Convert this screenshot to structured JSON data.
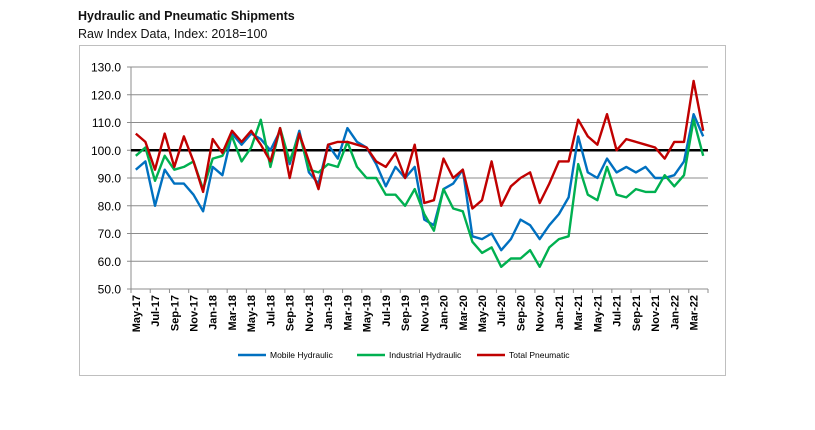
{
  "chart_data": {
    "type": "line",
    "title": "Hydraulic and Pneumatic Shipments",
    "subtitle": "Raw Index Data, Index: 2018=100",
    "xlabel": "",
    "ylabel": "",
    "ylim": [
      50,
      130
    ],
    "yticks": [
      "50.0",
      "60.0",
      "70.0",
      "80.0",
      "90.0",
      "100.0",
      "110.0",
      "120.0",
      "130.0"
    ],
    "reference_line": 100,
    "grid": true,
    "legend_placement": "bottom",
    "x": [
      "May-17",
      "Jun-17",
      "Jul-17",
      "Aug-17",
      "Sep-17",
      "Oct-17",
      "Nov-17",
      "Dec-17",
      "Jan-18",
      "Feb-18",
      "Mar-18",
      "Apr-18",
      "May-18",
      "Jun-18",
      "Jul-18",
      "Aug-18",
      "Sep-18",
      "Oct-18",
      "Nov-18",
      "Dec-18",
      "Jan-19",
      "Feb-19",
      "Mar-19",
      "Apr-19",
      "May-19",
      "Jun-19",
      "Jul-19",
      "Aug-19",
      "Sep-19",
      "Oct-19",
      "Nov-19",
      "Dec-19",
      "Jan-20",
      "Feb-20",
      "Mar-20",
      "Apr-20",
      "May-20",
      "Jun-20",
      "Jul-20",
      "Aug-20",
      "Sep-20",
      "Oct-20",
      "Nov-20",
      "Dec-20",
      "Jan-21",
      "Feb-21",
      "Mar-21",
      "Apr-21",
      "May-21",
      "Jun-21",
      "Jul-21",
      "Aug-21",
      "Sep-21",
      "Oct-21",
      "Nov-21",
      "Dec-21",
      "Jan-22",
      "Feb-22",
      "Mar-22",
      "Apr-22"
    ],
    "xtick_labels": [
      "May-17",
      "Jul-17",
      "Sep-17",
      "Nov-17",
      "Jan-18",
      "Mar-18",
      "May-18",
      "Jul-18",
      "Sep-18",
      "Nov-18",
      "Jan-19",
      "Mar-19",
      "May-19",
      "Jul-19",
      "Sep-19",
      "Nov-19",
      "Jan-20",
      "Mar-20",
      "May-20",
      "Jul-20",
      "Sep-20",
      "Nov-20",
      "Jan-21",
      "Mar-21",
      "May-21",
      "Jul-21",
      "Sep-21",
      "Nov-21",
      "Jan-22",
      "Mar-22"
    ],
    "series": [
      {
        "name": "Mobile Hydraulic",
        "color": "#0070c0",
        "values": [
          93,
          96,
          80,
          93,
          88,
          88,
          84,
          78,
          94,
          91,
          106,
          102,
          106,
          104,
          100,
          107,
          95,
          107,
          92,
          88,
          102,
          97,
          108,
          103,
          101,
          95,
          87,
          94,
          90,
          94,
          75,
          73,
          86,
          88,
          93,
          69,
          68,
          70,
          64,
          68,
          75,
          73,
          68,
          73,
          77,
          83,
          105,
          92,
          90,
          97,
          92,
          94,
          92,
          94,
          90,
          90,
          91,
          96,
          113,
          105
        ]
      },
      {
        "name": "Industrial Hydraulic",
        "color": "#00b050",
        "values": [
          98,
          101,
          89,
          98,
          93,
          94,
          96,
          86,
          97,
          98,
          105,
          96,
          101,
          111,
          94,
          108,
          96,
          106,
          93,
          92,
          95,
          94,
          103,
          94,
          90,
          90,
          84,
          84,
          80,
          86,
          77,
          71,
          86,
          79,
          78,
          67,
          63,
          65,
          58,
          61,
          61,
          64,
          58,
          65,
          68,
          69,
          95,
          84,
          82,
          94,
          84,
          83,
          86,
          85,
          85,
          91,
          87,
          91,
          111,
          98
        ]
      },
      {
        "name": "Total Pneumatic",
        "color": "#c00000",
        "values": [
          106,
          103,
          93,
          106,
          94,
          105,
          96,
          85,
          104,
          99,
          107,
          103,
          107,
          102,
          96,
          108,
          90,
          106,
          96,
          86,
          102,
          103,
          103,
          102,
          101,
          96,
          94,
          99,
          90,
          102,
          81,
          82,
          97,
          90,
          93,
          79,
          82,
          96,
          80,
          87,
          90,
          92,
          81,
          88,
          96,
          96,
          111,
          105,
          102,
          113,
          100,
          104,
          103,
          102,
          101,
          97,
          103,
          103,
          125,
          107
        ]
      }
    ]
  }
}
